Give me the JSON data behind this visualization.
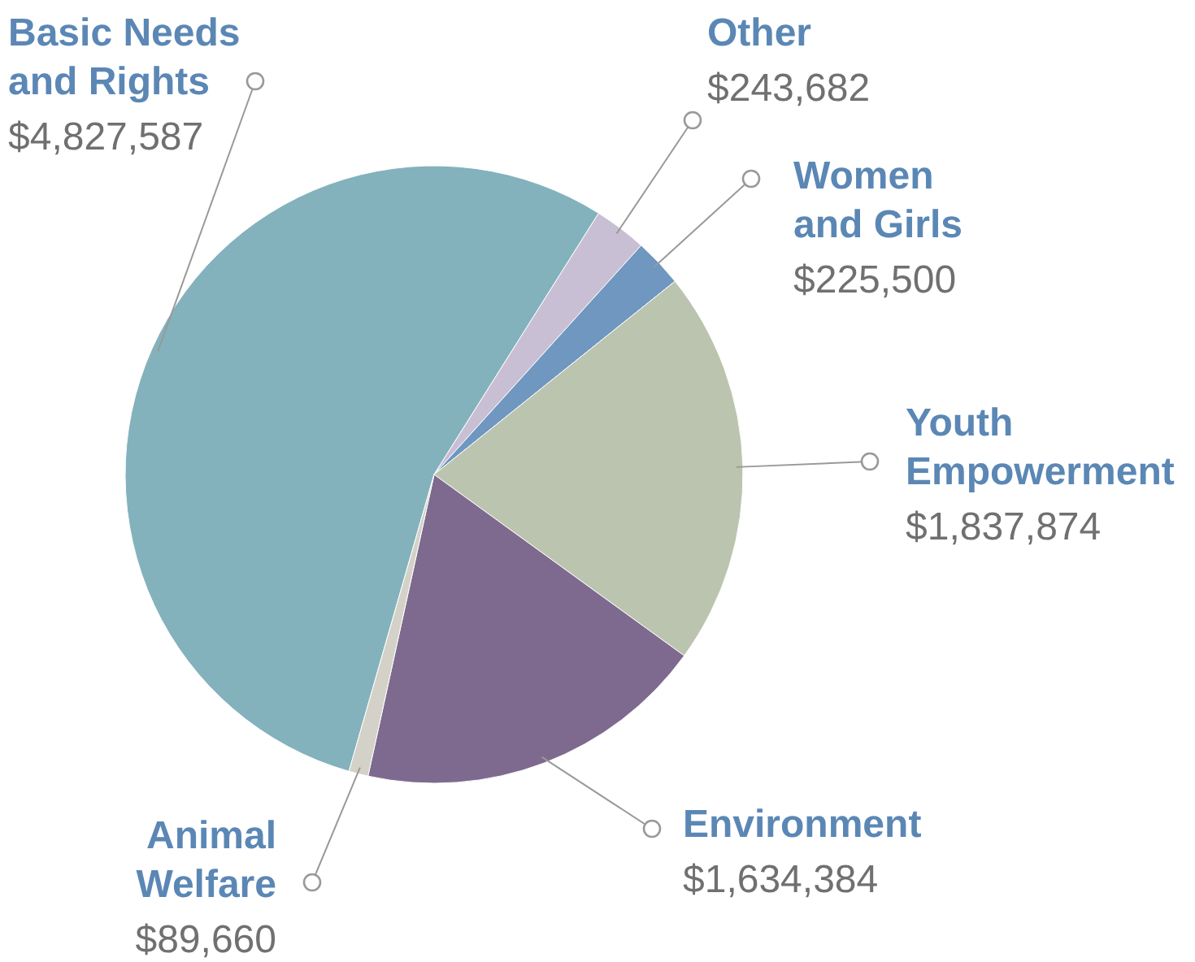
{
  "chart_data": {
    "type": "pie",
    "categories": [
      "Basic Needs and Rights",
      "Other",
      "Women and Girls",
      "Youth Empowerment",
      "Environment",
      "Animal Welfare"
    ],
    "values": [
      4827587,
      243682,
      225500,
      1837874,
      1634384,
      89660
    ],
    "value_labels": [
      "$4,827,587",
      "$243,682",
      "$225,500",
      "$1,837,874",
      "$1,634,384",
      "$89,660"
    ],
    "colors": [
      "#83b2bd",
      "#c9bfd4",
      "#6f97c0",
      "#bbc4ae",
      "#7e6a8e",
      "#d3d1c8"
    ]
  }
}
